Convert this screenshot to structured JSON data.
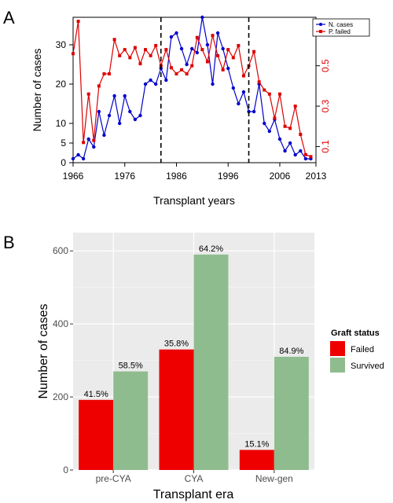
{
  "chart_data": [
    {
      "panel_label": "A",
      "type": "line",
      "xlabel": "Transplant years",
      "ylabel": "Number of cases",
      "xlim": [
        1966,
        2013
      ],
      "ylim": [
        0,
        37
      ],
      "y2lim": [
        0.02,
        0.74
      ],
      "x_ticks": [
        1966,
        1976,
        1986,
        1996,
        2006,
        2013
      ],
      "y_ticks": [
        0,
        5,
        10,
        20,
        30
      ],
      "y2_ticks": [
        0.1,
        0.3,
        0.5
      ],
      "y2_tick_labels": [
        "0.1",
        "0.3",
        "0.5"
      ],
      "vlines": [
        1983,
        2000
      ],
      "legend": {
        "position": "top-right",
        "labels": [
          "N. cases",
          "P. failed"
        ]
      },
      "series": [
        {
          "name": "N. cases",
          "axis": "left",
          "color": "#0000cc",
          "marker": "circle",
          "x": [
            1966,
            1967,
            1968,
            1969,
            1970,
            1971,
            1972,
            1973,
            1974,
            1975,
            1976,
            1977,
            1978,
            1979,
            1980,
            1981,
            1982,
            1983,
            1984,
            1985,
            1986,
            1987,
            1988,
            1989,
            1990,
            1991,
            1992,
            1993,
            1994,
            1995,
            1996,
            1997,
            1998,
            1999,
            2000,
            2001,
            2002,
            2003,
            2004,
            2005,
            2006,
            2007,
            2008,
            2009,
            2010,
            2011,
            2012
          ],
          "values": [
            1,
            2,
            1,
            6,
            4,
            13,
            7,
            12,
            17,
            10,
            17,
            13,
            11,
            12,
            20,
            21,
            20,
            24,
            21,
            32,
            33,
            29,
            25,
            29,
            28,
            37,
            30,
            20,
            33,
            29,
            24,
            19,
            15,
            18,
            13,
            13,
            20,
            10,
            8,
            11,
            6,
            3,
            5,
            2,
            3,
            1,
            1
          ]
        },
        {
          "name": "P. failed",
          "axis": "right",
          "color": "#dd0000",
          "marker": "square",
          "x": [
            1966,
            1967,
            1968,
            1969,
            1970,
            1971,
            1972,
            1973,
            1974,
            1975,
            1976,
            1977,
            1978,
            1979,
            1980,
            1981,
            1982,
            1983,
            1984,
            1985,
            1986,
            1987,
            1988,
            1989,
            1990,
            1991,
            1992,
            1993,
            1994,
            1995,
            1996,
            1997,
            1998,
            1999,
            2000,
            2001,
            2002,
            2003,
            2004,
            2005,
            2006,
            2007,
            2008,
            2009,
            2010,
            2011,
            2012
          ],
          "values": [
            0.56,
            0.72,
            0.12,
            0.36,
            0.13,
            0.4,
            0.46,
            0.46,
            0.63,
            0.55,
            0.58,
            0.54,
            0.59,
            0.51,
            0.58,
            0.55,
            0.6,
            0.5,
            0.58,
            0.49,
            0.46,
            0.48,
            0.46,
            0.5,
            0.64,
            0.58,
            0.52,
            0.65,
            0.55,
            0.48,
            0.58,
            0.54,
            0.6,
            0.45,
            0.5,
            0.57,
            0.42,
            0.38,
            0.36,
            0.24,
            0.36,
            0.2,
            0.19,
            0.3,
            0.16,
            0.06,
            0.05
          ]
        }
      ]
    },
    {
      "panel_label": "B",
      "type": "bar",
      "xlabel": "Transplant era",
      "ylabel": "Number of cases",
      "ylim": [
        0,
        650
      ],
      "y_ticks": [
        0,
        200,
        400,
        600
      ],
      "categories": [
        "pre-CYA",
        "CYA",
        "New-gen"
      ],
      "legend": {
        "title": "Graft status",
        "position": "right"
      },
      "series": [
        {
          "name": "Failed",
          "color": "#ee0000",
          "values": [
            192,
            330,
            55
          ],
          "labels": [
            "41.5%",
            "35.8%",
            "15.1%"
          ]
        },
        {
          "name": "Survived",
          "color": "#8fbc8f",
          "values": [
            270,
            590,
            310
          ],
          "labels": [
            "58.5%",
            "64.2%",
            "84.9%"
          ]
        }
      ]
    }
  ]
}
